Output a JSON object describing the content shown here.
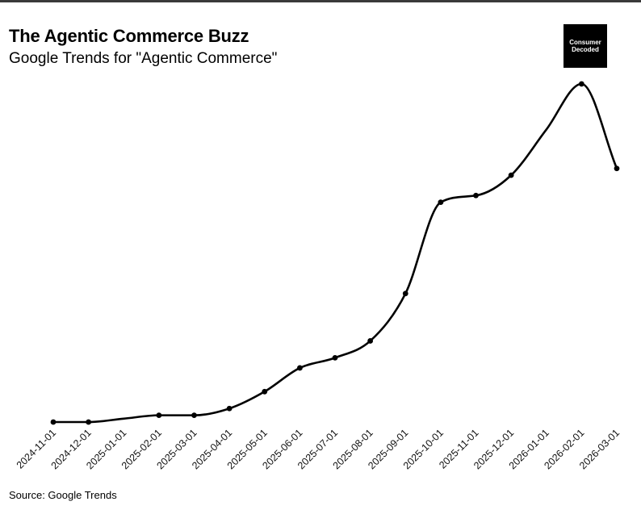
{
  "header": {
    "title": "The Agentic Commerce Buzz",
    "subtitle": "Google Trends for \"Agentic Commerce\""
  },
  "logo": {
    "line1": "Consumer",
    "line2": "Decoded"
  },
  "footer": {
    "source": "Source: Google Trends"
  },
  "colors": {
    "line": "#000000",
    "logo_bg": "#000000",
    "logo_text": "#ffffff"
  },
  "chart_data": {
    "type": "line",
    "title": "The Agentic Commerce Buzz",
    "subtitle": "Google Trends for \"Agentic Commerce\"",
    "xlabel": "",
    "ylabel": "",
    "categories": [
      "2024-11-01",
      "2024-12-01",
      "2025-01-01",
      "2025-02-01",
      "2025-03-01",
      "2025-04-01",
      "2025-05-01",
      "2025-06-01",
      "2025-07-01",
      "2025-08-01",
      "2025-09-01",
      "2025-10-01",
      "2025-11-01",
      "2025-12-01",
      "2026-01-01",
      "2026-02-01",
      "2026-03-01"
    ],
    "series": [
      {
        "values": [
          0,
          0,
          null,
          2,
          2,
          4,
          9,
          16,
          19,
          24,
          38,
          65,
          67,
          73,
          null,
          100,
          75
        ]
      }
    ],
    "ylim": [
      0,
      100
    ],
    "grid": false,
    "legend": "none",
    "smooth": true,
    "markers": true
  }
}
